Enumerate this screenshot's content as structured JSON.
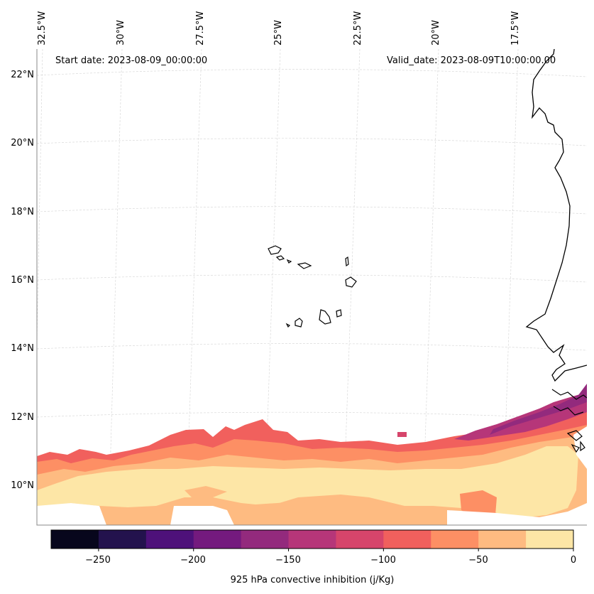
{
  "map": {
    "start_date": "Start date: 2023-08-09_00:00:00",
    "valid_date": "Valid_date: 2023-08-09T10:00:00.00",
    "lon_labels": [
      "32.5°W",
      "30°W",
      "27.5°W",
      "25°W",
      "22.5°W",
      "20°W",
      "17.5°W"
    ],
    "lat_labels": [
      "22°N",
      "20°N",
      "18°N",
      "16°N",
      "14°N",
      "12°N",
      "10°N"
    ],
    "region_lon_range": [
      "33°W",
      "15.5°W"
    ],
    "region_lat_range": [
      "9°N",
      "22.5°N"
    ],
    "features": [
      "Cabo Verde islands",
      "West African coastline"
    ]
  },
  "colorbar": {
    "label": "925 hPa convective inhibition (j/Kg)",
    "tick_labels": [
      "−250",
      "−200",
      "−150",
      "−100",
      "−50",
      "0"
    ],
    "levels": [
      -275,
      -250,
      -225,
      -200,
      -175,
      -150,
      -125,
      -100,
      -75,
      -50,
      -25,
      0
    ],
    "colors": [
      "#07061c",
      "#23124d",
      "#4e117a",
      "#741a7e",
      "#932a7d",
      "#b63679",
      "#d6456b",
      "#f1605d",
      "#fd8f64",
      "#febb81",
      "#fde6a6"
    ]
  }
}
